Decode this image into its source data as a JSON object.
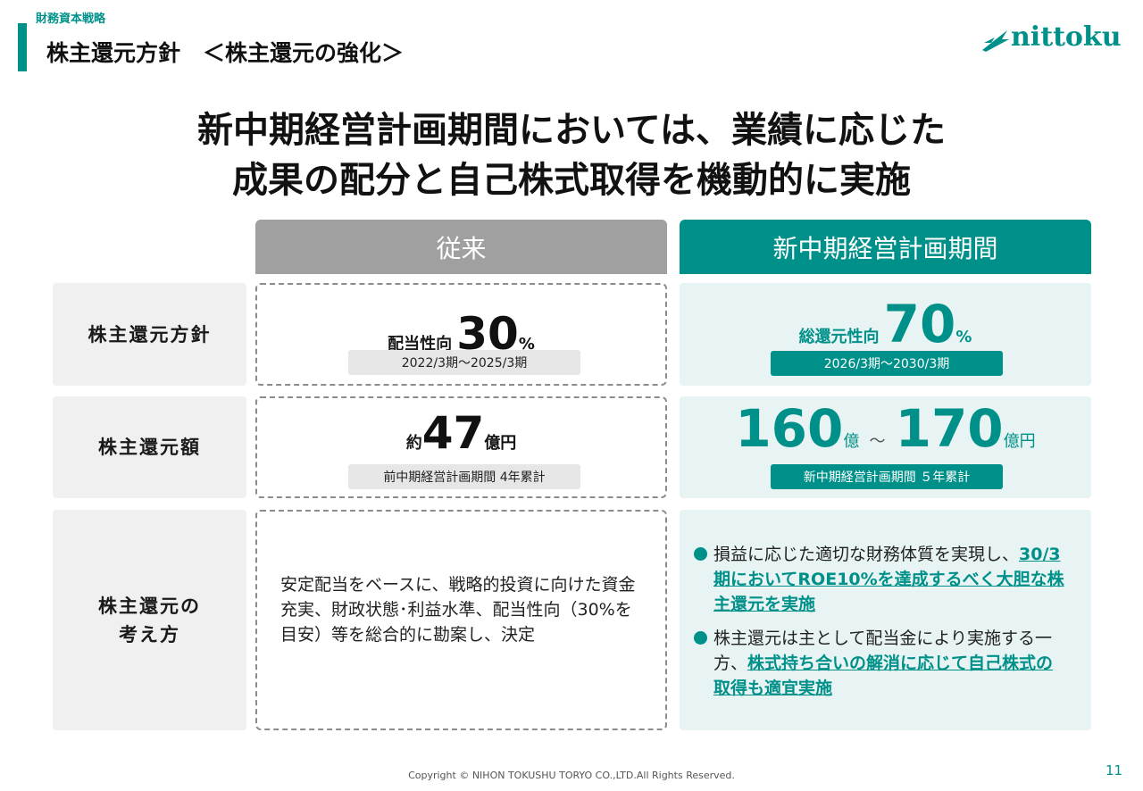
{
  "header": {
    "section": "財務資本戦略",
    "title": "株主還元方針　＜株主還元の強化＞"
  },
  "logo": {
    "text": "nittoku"
  },
  "headline": {
    "line1": "新中期経営計画期間においては、業績に応じた",
    "line2": "成果の配分と自己株式取得を機動的に実施"
  },
  "columns": {
    "old": "従来",
    "new": "新中期経営計画期間"
  },
  "rows": {
    "policy": {
      "label": "株主還元方針",
      "old": {
        "prefix": "配当性向",
        "value": "30",
        "unit": "%",
        "period": "2022/3期～2025/3期"
      },
      "new": {
        "prefix": "総還元性向",
        "value": "70",
        "unit": "%",
        "period": "2026/3期～2030/3期"
      }
    },
    "amount": {
      "label": "株主還元額",
      "old": {
        "prefix": "約",
        "value": "47",
        "unit": "億円",
        "note": "前中期経営計画期間 4年累計"
      },
      "new": {
        "value_low": "160",
        "unit_low": "億",
        "tilde": "～",
        "value_high": "170",
        "unit_high": "億円",
        "note": "新中期経営計画期間 ５年累計"
      }
    },
    "approach": {
      "label_line1": "株主還元の",
      "label_line2": "考え方",
      "old_text": "安定配当をベースに、戦略的投資に向けた資金充実、財政状態･利益水準、配当性向（30%を目安）等を総合的に勘案し、決定",
      "new_bullets": [
        {
          "plain": "損益に応じた適切な財務体質を実現し、",
          "emph": "30/3期においてROE10%を達成するべく大胆な株主還元を実施"
        },
        {
          "plain": "株主還元は主として配当金により実施する一方、",
          "emph": "株式持ち合いの解消に応じて自己株式の取得も適宜実施"
        }
      ]
    }
  },
  "footer": {
    "copyright": "Copyright © NIHON TOKUSHU TORYO CO.,LTD.All Rights Reserved.",
    "page": "11"
  },
  "colors": {
    "accent": "#00908a",
    "gray_header": "#a0a0a0",
    "light_teal": "#e7f4f3",
    "light_gray": "#f0f0f0"
  },
  "icons": {
    "logo_mark": "nittoku-logo-icon",
    "bullet": "bullet-dot-icon"
  }
}
